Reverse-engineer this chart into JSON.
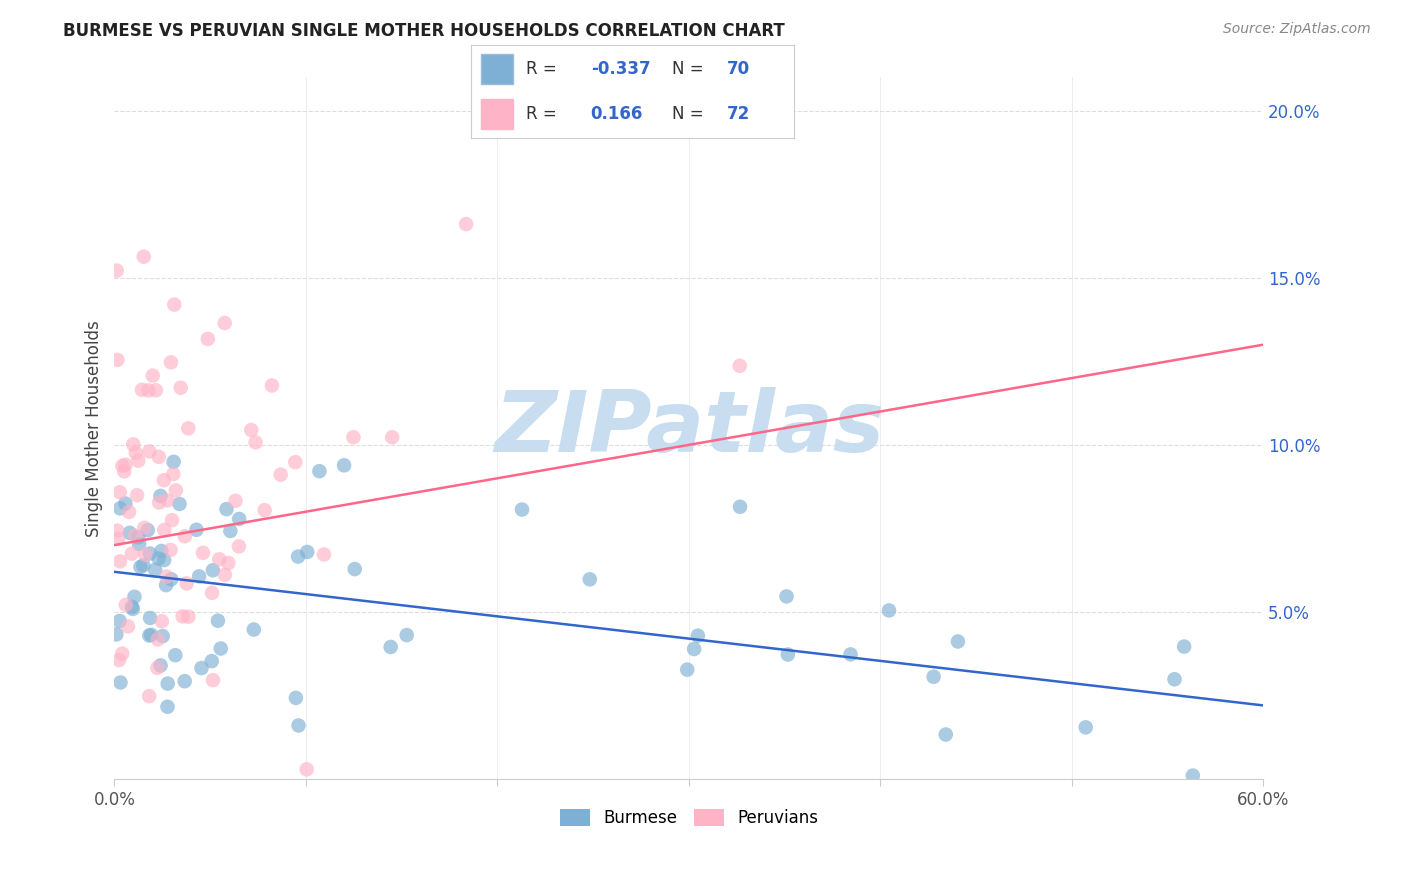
{
  "title": "BURMESE VS PERUVIAN SINGLE MOTHER HOUSEHOLDS CORRELATION CHART",
  "source": "Source: ZipAtlas.com",
  "ylabel": "Single Mother Households",
  "legend_label1": "Burmese",
  "legend_label2": "Peruvians",
  "R1": -0.337,
  "N1": 70,
  "R2": 0.166,
  "N2": 72,
  "color_blue": "#7EB0D5",
  "color_pink": "#FFB3C6",
  "line_color_blue": "#3366CC",
  "line_color_pink": "#FF6688",
  "watermark_text": "ZIPatlas",
  "watermark_color": "#C8DDEF",
  "xlim": [
    0.0,
    0.6
  ],
  "ylim": [
    0.0,
    0.21
  ],
  "yticks_right": [
    0.05,
    0.1,
    0.15,
    0.2
  ],
  "background": "#ffffff",
  "grid_color": "#DDDDDD",
  "spine_color": "#CCCCCC",
  "title_color": "#222222",
  "source_color": "#888888",
  "ylabel_color": "#444444",
  "tick_label_color": "#555555",
  "right_tick_color": "#3366CC",
  "legend_text_color": "#333333",
  "legend_value_color": "#3366CC"
}
